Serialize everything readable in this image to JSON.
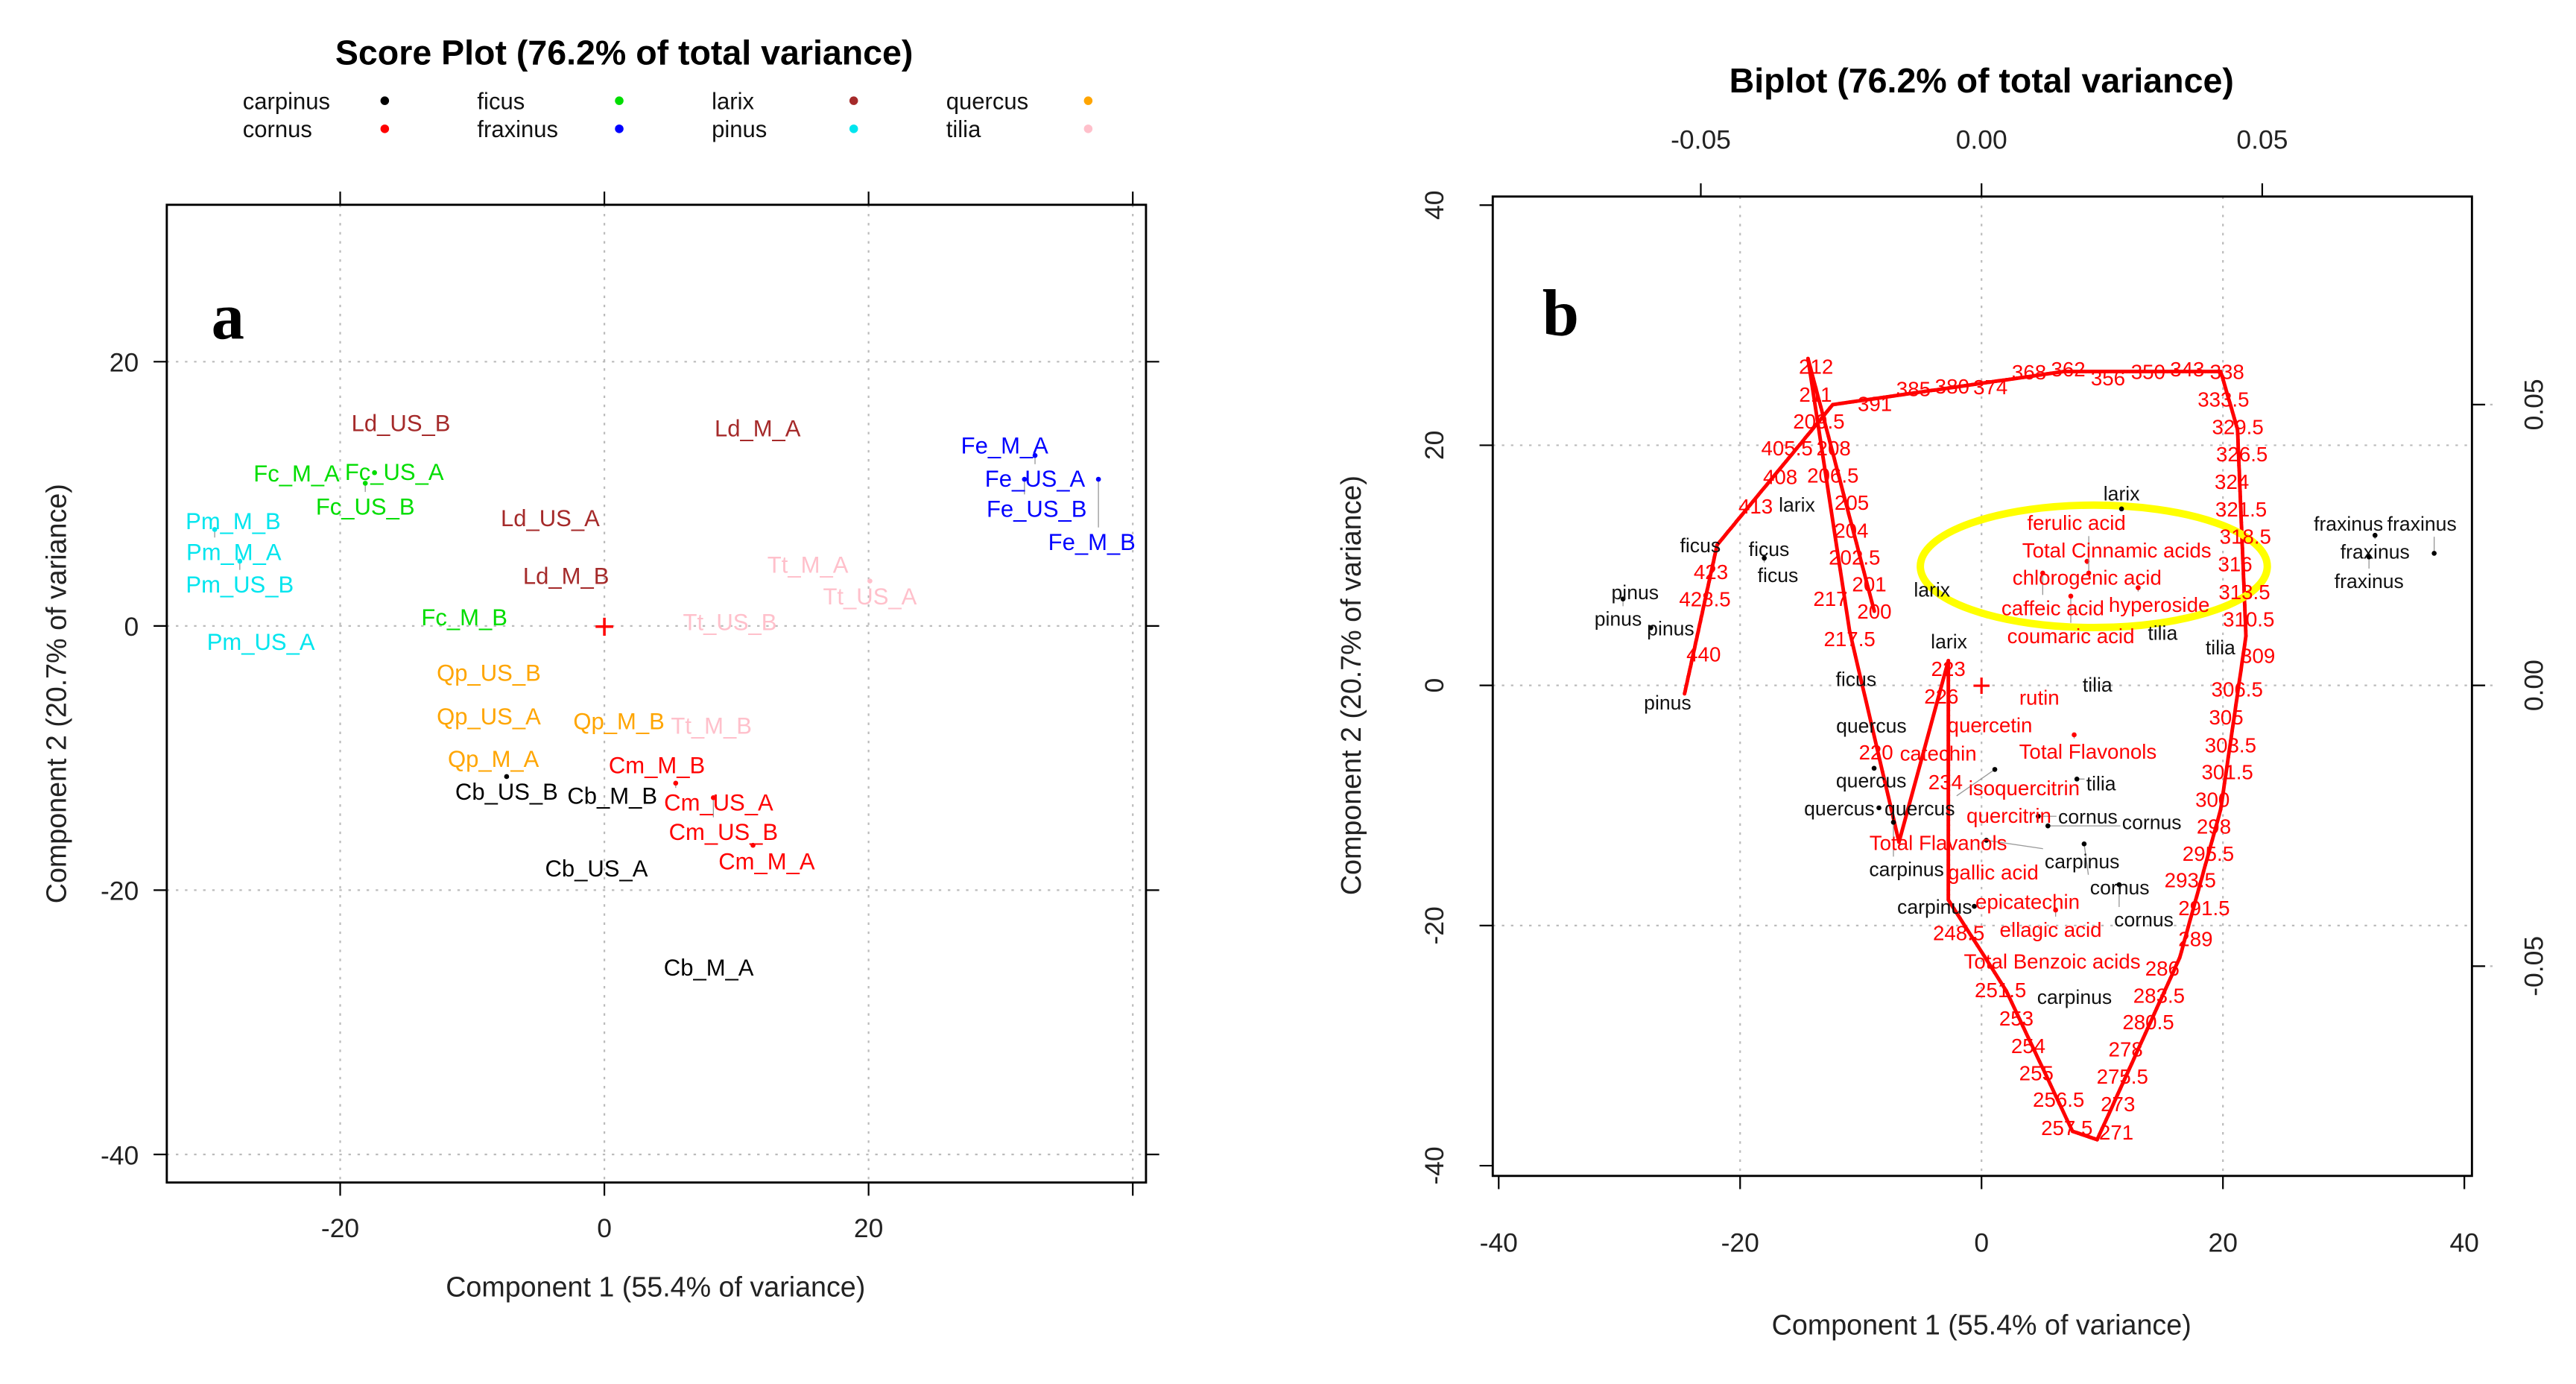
{
  "chart_data": [
    {
      "type": "scatter",
      "panel_label": "a",
      "title": "Score Plot (76.2% of total variance)",
      "xlabel": "Component 1 (55.4% of variance)",
      "ylabel": "Component 2 (20.7% of variance)",
      "xlim": [
        -33,
        41
      ],
      "ylim": [
        -42,
        32
      ],
      "xticks": [
        -20,
        0,
        20
      ],
      "yticks": [
        -40,
        -20,
        0,
        20
      ],
      "grid": true,
      "legend_position": "top",
      "legend": [
        {
          "name": "carpinus",
          "color": "#000000"
        },
        {
          "name": "cornus",
          "color": "#ff0000"
        },
        {
          "name": "ficus",
          "color": "#00dd00"
        },
        {
          "name": "fraxinus",
          "color": "#0000ff"
        },
        {
          "name": "larix",
          "color": "#a52a2a"
        },
        {
          "name": "pinus",
          "color": "#00e5ee"
        },
        {
          "name": "quercus",
          "color": "#ffa500"
        },
        {
          "name": "tilia",
          "color": "#ffc0cb"
        }
      ],
      "origin_marker": "+",
      "points": [
        {
          "label": "Ld_US_B",
          "group": "larix",
          "x": -15.4,
          "y": 15.3
        },
        {
          "label": "Ld_M_A",
          "group": "larix",
          "x": 11.6,
          "y": 14.9
        },
        {
          "label": "Ld_US_A",
          "group": "larix",
          "x": -4.1,
          "y": 8.1
        },
        {
          "label": "Ld_M_B",
          "group": "larix",
          "x": -2.9,
          "y": 3.75
        },
        {
          "label": "Fe_M_A",
          "group": "fraxinus",
          "x": 30.3,
          "y": 13.6
        },
        {
          "label": "Fe_US_A",
          "group": "fraxinus",
          "x": 32.6,
          "y": 12.9
        },
        {
          "label": "Fe_US_B",
          "group": "fraxinus",
          "x": 31.8,
          "y": 11.1
        },
        {
          "label": "Fe_M_B",
          "group": "fraxinus",
          "x": 37.4,
          "y": 11.1
        },
        {
          "label": "Fc_M_A",
          "group": "ficus",
          "x": -23.3,
          "y": 11.5
        },
        {
          "label": "Fc_US_A",
          "group": "ficus",
          "x": -17.4,
          "y": 11.6
        },
        {
          "label": "Fc_US_B",
          "group": "ficus",
          "x": -18.1,
          "y": 10.8
        },
        {
          "label": "Fc_M_B",
          "group": "ficus",
          "x": -10.6,
          "y": 0.6
        },
        {
          "label": "Pm_M_B",
          "group": "pinus",
          "x": -28.1,
          "y": 7.9
        },
        {
          "label": "Pm_M_A",
          "group": "pinus",
          "x": -29.5,
          "y": 7.3
        },
        {
          "label": "Pm_US_B",
          "group": "pinus",
          "x": -27.6,
          "y": 4.9
        },
        {
          "label": "Pm_US_A",
          "group": "pinus",
          "x": -26.0,
          "y": -1.25
        },
        {
          "label": "Tt_M_A",
          "group": "tilia",
          "x": 15.4,
          "y": 4.6
        },
        {
          "label": "Tt_US_A",
          "group": "tilia",
          "x": 20.1,
          "y": 3.4
        },
        {
          "label": "Tt_US_B",
          "group": "tilia",
          "x": 9.5,
          "y": 0.25
        },
        {
          "label": "Tt_M_B",
          "group": "tilia",
          "x": 8.1,
          "y": -7.6
        },
        {
          "label": "Qp_US_B",
          "group": "quercus",
          "x": -8.75,
          "y": -3.6
        },
        {
          "label": "Qp_US_A",
          "group": "quercus",
          "x": -8.75,
          "y": -6.9
        },
        {
          "label": "Qp_M_B",
          "group": "quercus",
          "x": 1.1,
          "y": -7.25
        },
        {
          "label": "Qp_M_A",
          "group": "quercus",
          "x": -8.4,
          "y": -10.1
        },
        {
          "label": "Cb_US_B",
          "group": "carpinus",
          "x": -7.4,
          "y": -11.4
        },
        {
          "label": "Cb_M_B",
          "group": "carpinus",
          "x": 0.6,
          "y": -12.9
        },
        {
          "label": "Cb_US_A",
          "group": "carpinus",
          "x": -0.6,
          "y": -18.4
        },
        {
          "label": "Cb_M_A",
          "group": "carpinus",
          "x": 7.9,
          "y": -25.9
        },
        {
          "label": "Cm_M_B",
          "group": "cornus",
          "x": 4.5,
          "y": -11.0
        },
        {
          "label": "Cm_US_A",
          "group": "cornus",
          "x": 5.4,
          "y": -11.9
        },
        {
          "label": "Cm_US_B",
          "group": "cornus",
          "x": 8.25,
          "y": -13.0
        },
        {
          "label": "Cm_M_A",
          "group": "cornus",
          "x": 11.25,
          "y": -16.6
        }
      ]
    },
    {
      "type": "scatter",
      "panel_label": "b",
      "title": "Biplot (76.2% of total variance)",
      "xlabel": "Component 1 (55.4% of variance)",
      "ylabel": "Component 2 (20.7% of variance)",
      "xlim": [
        -40.4,
        40.7
      ],
      "ylim": [
        -40.9,
        40.7
      ],
      "xticks": [
        -40,
        -20,
        0,
        20,
        40
      ],
      "yticks": [
        -40,
        -20,
        0,
        20,
        40
      ],
      "loading_ticks": [
        "-0.05",
        "0.00",
        "0.05"
      ],
      "loading_tick_values": [
        -0.05,
        0,
        0.05
      ],
      "grid": true,
      "sample_color": "#000000",
      "variable_color": "#ff0000",
      "sample_points": [
        {
          "label": "larix",
          "x": 11.6,
          "y": 14.7
        },
        {
          "label": "larix",
          "x": -15.3,
          "y": 15.1
        },
        {
          "label": "larix",
          "x": -4.1,
          "y": 8.0
        },
        {
          "label": "larix",
          "x": -2.7,
          "y": 3.7
        },
        {
          "label": "ficus",
          "x": -23.3,
          "y": 11.7
        },
        {
          "label": "ficus",
          "x": -17.6,
          "y": 11.4
        },
        {
          "label": "ficus",
          "x": -18.0,
          "y": 10.6
        },
        {
          "label": "ficus",
          "x": -10.4,
          "y": 0.55
        },
        {
          "label": "pinus",
          "x": -28.7,
          "y": 7.8
        },
        {
          "label": "pinus",
          "x": -29.7,
          "y": 7.2
        },
        {
          "label": "pinus",
          "x": -27.4,
          "y": 4.8
        },
        {
          "label": "pinus",
          "x": -26.0,
          "y": -1.4
        },
        {
          "label": "fraxinus",
          "x": 30.4,
          "y": 13.5
        },
        {
          "label": "fraxinus",
          "x": 32.6,
          "y": 12.5
        },
        {
          "label": "fraxinus",
          "x": 32.1,
          "y": 10.7
        },
        {
          "label": "fraxinus",
          "x": 37.5,
          "y": 11.0
        },
        {
          "label": "tilia",
          "x": 15.0,
          "y": 4.4
        },
        {
          "label": "tilia",
          "x": 19.8,
          "y": 3.2
        },
        {
          "label": "tilia",
          "x": 9.6,
          "y": 0.1
        },
        {
          "label": "tilia",
          "x": 7.9,
          "y": -7.8
        },
        {
          "label": "quercus",
          "x": -8.9,
          "y": -3.6
        },
        {
          "label": "quercus",
          "x": -8.9,
          "y": -6.9
        },
        {
          "label": "quercus",
          "x": 1.1,
          "y": -7.0
        },
        {
          "label": "quercus",
          "x": -8.5,
          "y": -10.2
        },
        {
          "label": "carpinus",
          "x": -7.3,
          "y": -11.4
        },
        {
          "label": "carpinus",
          "x": 0.4,
          "y": -12.9
        },
        {
          "label": "carpinus",
          "x": -0.6,
          "y": -18.4
        },
        {
          "label": "carpinus",
          "x": 7.7,
          "y": -25.9
        },
        {
          "label": "cornus",
          "x": 4.7,
          "y": -10.9
        },
        {
          "label": "cornus",
          "x": 5.5,
          "y": -11.7
        },
        {
          "label": "cornus",
          "x": 8.5,
          "y": -13.2
        },
        {
          "label": "cornus",
          "x": 11.4,
          "y": -16.6
        }
      ],
      "variable_loadings": [
        {
          "label": "Total Cinnamic acids",
          "x": 0.0241,
          "y": 0.0241
        },
        {
          "label": "chlorogenic acid",
          "x": 0.0188,
          "y": 0.0221
        },
        {
          "label": "caffeic acid",
          "x": 0.0109,
          "y": 0.02
        },
        {
          "label": "ferulic acid",
          "x": 0.0191,
          "y": 0.02
        },
        {
          "label": "hyperoside",
          "x": 0.0279,
          "y": 0.0174
        },
        {
          "label": "coumaric acid",
          "x": 0.0159,
          "y": 0.0159
        },
        {
          "label": "rutin",
          "x": 0.0103,
          "y": -0.0021
        },
        {
          "label": "quercetin",
          "x": 0.0015,
          "y": -0.0056
        },
        {
          "label": "Total Flavonols",
          "x": 0.0165,
          "y": -0.0088
        },
        {
          "label": "catechin",
          "x": -0.0082,
          "y": -0.0115
        },
        {
          "label": "isoquercitrin",
          "x": 0.0076,
          "y": -0.0182
        },
        {
          "label": "quercitrin",
          "x": 0.0044,
          "y": -0.0226
        },
        {
          "label": "Total Flavanols",
          "x": -0.0082,
          "y": -0.0274
        },
        {
          "label": "gallic acid",
          "x": 0.0021,
          "y": -0.0332
        },
        {
          "label": "epicatechin",
          "x": 0.0082,
          "y": -0.0385
        },
        {
          "label": "ellagic acid",
          "x": 0.0132,
          "y": -0.04
        },
        {
          "label": "Total Benzoic acids",
          "x": 0.0126,
          "y": -0.0491
        }
      ],
      "wavelength_curve": {
        "start": 200,
        "end": 450,
        "step": 0.5,
        "path": [
          {
            "wl": 200,
            "x": -0.0191,
            "y": 0.0132
          },
          {
            "wl": 213,
            "x": -0.0309,
            "y": 0.0582
          },
          {
            "wl": 217.5,
            "x": -0.0235,
            "y": 0.0097
          },
          {
            "wl": 222,
            "x": -0.0147,
            "y": -0.0279
          },
          {
            "wl": 223,
            "x": -0.0059,
            "y": 0.0044
          },
          {
            "wl": 247,
            "x": -0.0059,
            "y": -0.0382
          },
          {
            "wl": 252,
            "x": 0.0044,
            "y": -0.0544
          },
          {
            "wl": 258,
            "x": 0.0162,
            "y": -0.0794
          },
          {
            "wl": 270,
            "x": 0.0206,
            "y": -0.0809
          },
          {
            "wl": 288,
            "x": 0.0353,
            "y": -0.0485
          },
          {
            "wl": 300,
            "x": 0.0426,
            "y": -0.0221
          },
          {
            "wl": 310,
            "x": 0.0471,
            "y": 0.0088
          },
          {
            "wl": 330,
            "x": 0.0456,
            "y": 0.0456
          },
          {
            "wl": 340,
            "x": 0.0426,
            "y": 0.0559
          },
          {
            "wl": 365,
            "x": 0.0147,
            "y": 0.0559
          },
          {
            "wl": 399,
            "x": -0.0265,
            "y": 0.05
          },
          {
            "wl": 420,
            "x": -0.0471,
            "y": 0.025
          },
          {
            "wl": 450,
            "x": -0.0529,
            "y": -0.0015
          }
        ]
      },
      "highlight_ellipse": {
        "cx": 0.02,
        "cy": 0.0212,
        "rx": 0.0309,
        "ry": 0.0109,
        "color": "#ffff00"
      },
      "origin_marker": "+"
    }
  ]
}
